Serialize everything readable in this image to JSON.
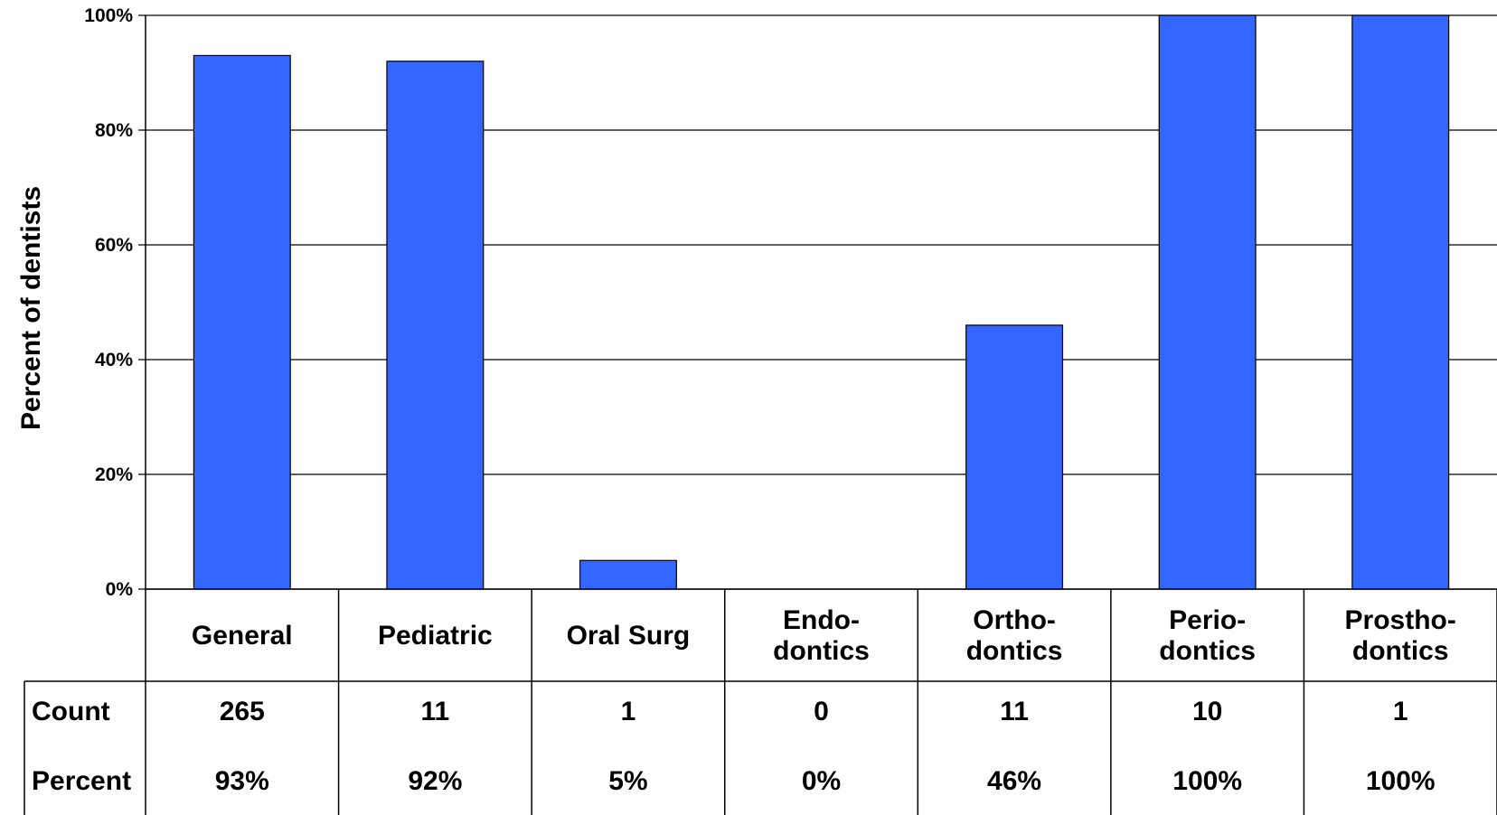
{
  "chart_data": {
    "type": "bar",
    "title": "",
    "xlabel": "",
    "ylabel": "Percent of dentists",
    "ylim": [
      0,
      100
    ],
    "yticks": [
      "0%",
      "20%",
      "40%",
      "60%",
      "80%",
      "100%"
    ],
    "ytick_values": [
      0,
      20,
      40,
      60,
      80,
      100
    ],
    "grid": true,
    "legend": "none",
    "bar_color": "#3366FF",
    "categories": [
      [
        "General"
      ],
      [
        "Pediatric"
      ],
      [
        "Oral Surg"
      ],
      [
        "Endo-",
        "dontics"
      ],
      [
        "Ortho-",
        "dontics"
      ],
      [
        "Perio-",
        "dontics"
      ],
      [
        "Prostho-",
        "dontics"
      ]
    ],
    "values": [
      93,
      92,
      5,
      0,
      46,
      100,
      100
    ],
    "table": {
      "rows": [
        {
          "label": "Count",
          "cells": [
            "265",
            "11",
            "1",
            "0",
            "11",
            "10",
            "1"
          ]
        },
        {
          "label": "Percent",
          "cells": [
            "93%",
            "92%",
            "5%",
            "0%",
            "46%",
            "100%",
            "100%"
          ]
        }
      ]
    }
  }
}
